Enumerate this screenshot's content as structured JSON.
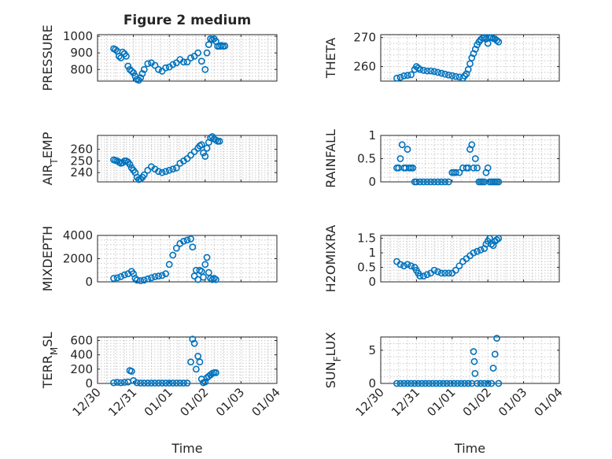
{
  "figure": {
    "title": "Figure 2 medium"
  },
  "chart_data": [
    {
      "type": "scatter",
      "panel": "PRESSURE",
      "title": "Figure 2 medium",
      "ylabel": "PRESSURE",
      "xlabel": "",
      "ylim": [
        730,
        1010
      ],
      "yticks": [
        800,
        900,
        1000
      ],
      "xlim": [
        "12/30",
        "01/04"
      ],
      "grid": true,
      "marker_color": "#0072BD",
      "x": [
        0.45,
        0.5,
        0.55,
        0.6,
        0.65,
        0.7,
        0.75,
        0.8,
        0.85,
        0.9,
        0.95,
        1.0,
        1.05,
        1.1,
        1.15,
        1.2,
        1.25,
        1.3,
        1.4,
        1.5,
        1.6,
        1.7,
        1.8,
        1.9,
        2.0,
        2.1,
        2.2,
        2.3,
        2.4,
        2.5,
        2.6,
        2.7,
        2.8,
        2.9,
        3.0,
        3.05,
        3.1,
        3.15,
        3.2,
        3.25,
        3.3,
        3.35,
        3.4,
        3.45,
        3.5,
        3.55
      ],
      "y": [
        925,
        920,
        910,
        880,
        870,
        905,
        895,
        880,
        820,
        800,
        790,
        780,
        760,
        740,
        735,
        750,
        775,
        800,
        835,
        840,
        825,
        800,
        790,
        810,
        815,
        830,
        840,
        860,
        845,
        845,
        870,
        880,
        900,
        850,
        800,
        900,
        950,
        985,
        980,
        985,
        970,
        940,
        940,
        945,
        940,
        942
      ]
    },
    {
      "type": "scatter",
      "panel": "THETA",
      "title": "",
      "ylabel": "THETA",
      "xlabel": "",
      "ylim": [
        255,
        271
      ],
      "yticks": [
        260,
        270
      ],
      "xlim": [
        "12/30",
        "01/04"
      ],
      "grid": true,
      "marker_color": "#0072BD",
      "x": [
        0.45,
        0.55,
        0.65,
        0.75,
        0.85,
        0.95,
        1.0,
        1.05,
        1.1,
        1.2,
        1.3,
        1.4,
        1.5,
        1.6,
        1.7,
        1.8,
        1.9,
        2.0,
        2.1,
        2.2,
        2.3,
        2.35,
        2.4,
        2.45,
        2.5,
        2.55,
        2.6,
        2.65,
        2.7,
        2.75,
        2.8,
        2.85,
        2.9,
        2.95,
        3.0,
        3.05,
        3.1,
        3.15,
        3.2,
        3.25,
        3.3
      ],
      "y": [
        256,
        256.3,
        256.8,
        257,
        257.2,
        259,
        260,
        259.5,
        259,
        258.7,
        258.5,
        258.5,
        258.3,
        258,
        257.7,
        257.4,
        257.1,
        256.9,
        256.6,
        256.4,
        256,
        256.8,
        257.5,
        259,
        261,
        263,
        264.5,
        266,
        267.5,
        268.5,
        269.3,
        269.8,
        270,
        269.5,
        268,
        270,
        270,
        269.7,
        269.5,
        269,
        268.5
      ]
    },
    {
      "type": "scatter",
      "panel": "AIR_TEMP",
      "title": "",
      "ylabel": "AIR_TEMP",
      "xlabel": "",
      "ylim": [
        232,
        272
      ],
      "yticks": [
        240,
        250,
        260
      ],
      "xlim": [
        "12/30",
        "01/04"
      ],
      "grid": true,
      "marker_color": "#0072BD",
      "x": [
        0.45,
        0.5,
        0.55,
        0.6,
        0.65,
        0.7,
        0.75,
        0.8,
        0.85,
        0.9,
        0.95,
        1.0,
        1.05,
        1.1,
        1.15,
        1.2,
        1.25,
        1.3,
        1.4,
        1.5,
        1.6,
        1.7,
        1.8,
        1.9,
        2.0,
        2.1,
        2.2,
        2.3,
        2.4,
        2.5,
        2.6,
        2.7,
        2.8,
        2.85,
        2.9,
        2.95,
        3.0,
        3.05,
        3.1,
        3.15,
        3.2,
        3.25,
        3.3,
        3.35,
        3.4
      ],
      "y": [
        251,
        250.5,
        250,
        249,
        248,
        248.5,
        250,
        250,
        249,
        247,
        244,
        242,
        240,
        236,
        234,
        234.5,
        236,
        238,
        242,
        245,
        243,
        241,
        240,
        241,
        242,
        243,
        244,
        248,
        250,
        252,
        255,
        258,
        261,
        263,
        264,
        257,
        254,
        261,
        266,
        270,
        271,
        269,
        268,
        267,
        267
      ]
    },
    {
      "type": "scatter",
      "panel": "RAINFALL",
      "title": "",
      "ylabel": "RAINFALL",
      "xlabel": "",
      "ylim": [
        0,
        1
      ],
      "yticks": [
        0,
        0.5,
        1
      ],
      "xlim": [
        "12/30",
        "01/04"
      ],
      "grid": true,
      "marker_color": "#0072BD",
      "x": [
        0.45,
        0.5,
        0.55,
        0.6,
        0.65,
        0.7,
        0.75,
        0.8,
        0.85,
        0.9,
        0.95,
        1.0,
        1.1,
        1.2,
        1.3,
        1.4,
        1.5,
        1.6,
        1.7,
        1.8,
        1.9,
        2.0,
        2.05,
        2.1,
        2.2,
        2.3,
        2.4,
        2.45,
        2.5,
        2.55,
        2.6,
        2.65,
        2.7,
        2.75,
        2.8,
        2.85,
        2.9,
        2.95,
        3.0,
        3.05,
        3.1,
        3.15,
        3.2,
        3.25,
        3.3
      ],
      "y": [
        0.3,
        0.3,
        0.5,
        0.8,
        0.3,
        0.3,
        0.7,
        0.3,
        0.3,
        0.3,
        0,
        0,
        0,
        0,
        0,
        0,
        0,
        0,
        0,
        0,
        0,
        0.2,
        0.2,
        0.2,
        0.2,
        0.3,
        0.3,
        0.3,
        0.7,
        0.8,
        0.3,
        0.5,
        0.3,
        0,
        0,
        0,
        0,
        0.2,
        0.3,
        0,
        0,
        0,
        0,
        0,
        0
      ]
    },
    {
      "type": "scatter",
      "panel": "MIXDEPTH",
      "title": "",
      "ylabel": "MIXDEPTH",
      "xlabel": "",
      "ylim": [
        0,
        4000
      ],
      "yticks": [
        0,
        2000,
        4000
      ],
      "xlim": [
        "12/30",
        "01/04"
      ],
      "grid": true,
      "marker_color": "#0072BD",
      "x": [
        0.45,
        0.55,
        0.65,
        0.75,
        0.85,
        0.95,
        1.0,
        1.05,
        1.1,
        1.2,
        1.3,
        1.4,
        1.5,
        1.6,
        1.7,
        1.8,
        1.9,
        2.0,
        2.1,
        2.2,
        2.3,
        2.4,
        2.5,
        2.6,
        2.65,
        2.7,
        2.75,
        2.8,
        2.85,
        2.9,
        2.95,
        3.0,
        3.05,
        3.1,
        3.15,
        3.2,
        3.25,
        3.3
      ],
      "y": [
        300,
        350,
        450,
        600,
        700,
        900,
        700,
        300,
        150,
        100,
        150,
        250,
        350,
        450,
        500,
        550,
        700,
        1500,
        2300,
        2900,
        3300,
        3500,
        3600,
        3700,
        3000,
        500,
        1000,
        200,
        1000,
        900,
        400,
        1500,
        2100,
        800,
        300,
        200,
        300,
        200
      ]
    },
    {
      "type": "scatter",
      "panel": "H2OMIXRA",
      "title": "",
      "ylabel": "H2OMIXRA",
      "xlabel": "",
      "ylim": [
        0,
        1.6
      ],
      "yticks": [
        0,
        0.5,
        1,
        1.5
      ],
      "xlim": [
        "12/30",
        "01/04"
      ],
      "grid": true,
      "marker_color": "#0072BD",
      "x": [
        0.45,
        0.55,
        0.65,
        0.75,
        0.85,
        0.95,
        1.0,
        1.05,
        1.1,
        1.2,
        1.3,
        1.4,
        1.5,
        1.6,
        1.7,
        1.8,
        1.9,
        2.0,
        2.1,
        2.2,
        2.3,
        2.4,
        2.5,
        2.6,
        2.7,
        2.8,
        2.9,
        2.95,
        3.0,
        3.05,
        3.1,
        3.15,
        3.2,
        3.25,
        3.3
      ],
      "y": [
        0.7,
        0.6,
        0.55,
        0.6,
        0.55,
        0.5,
        0.4,
        0.3,
        0.2,
        0.2,
        0.25,
        0.3,
        0.4,
        0.35,
        0.3,
        0.3,
        0.3,
        0.3,
        0.4,
        0.55,
        0.7,
        0.8,
        0.9,
        1.0,
        1.05,
        1.1,
        1.15,
        1.3,
        1.4,
        1.5,
        1.3,
        1.25,
        1.4,
        1.45,
        1.5
      ]
    },
    {
      "type": "scatter",
      "panel": "TERR_MSL",
      "title": "",
      "ylabel": "TERR_MSL",
      "xlabel": "Time",
      "ylim": [
        0,
        650
      ],
      "yticks": [
        0,
        200,
        400,
        600
      ],
      "xlim": [
        "12/30",
        "01/04"
      ],
      "xticks": [
        "12/30",
        "12/31",
        "01/01",
        "01/02",
        "01/03",
        "01/04"
      ],
      "grid": true,
      "marker_color": "#0072BD",
      "x": [
        0.45,
        0.55,
        0.65,
        0.75,
        0.85,
        0.9,
        0.95,
        1.0,
        1.1,
        1.2,
        1.3,
        1.4,
        1.5,
        1.6,
        1.7,
        1.8,
        1.9,
        2.0,
        2.1,
        2.2,
        2.3,
        2.4,
        2.5,
        2.6,
        2.65,
        2.7,
        2.75,
        2.8,
        2.85,
        2.9,
        2.95,
        3.0,
        3.05,
        3.1,
        3.15,
        3.2,
        3.25,
        3.3
      ],
      "y": [
        10,
        15,
        10,
        15,
        20,
        180,
        170,
        40,
        10,
        5,
        5,
        5,
        5,
        5,
        5,
        5,
        5,
        5,
        5,
        5,
        5,
        5,
        5,
        300,
        620,
        560,
        200,
        380,
        300,
        60,
        10,
        20,
        80,
        100,
        120,
        140,
        150,
        150
      ]
    },
    {
      "type": "scatter",
      "panel": "SUN_FLUX",
      "title": "",
      "ylabel": "SUN_FLUX",
      "xlabel": "Time",
      "ylim": [
        0,
        7
      ],
      "yticks": [
        0,
        5
      ],
      "xlim": [
        "12/30",
        "01/04"
      ],
      "xticks": [
        "12/30",
        "12/31",
        "01/01",
        "01/02",
        "01/03",
        "01/04"
      ],
      "grid": true,
      "marker_color": "#0072BD",
      "x": [
        0.45,
        0.55,
        0.65,
        0.75,
        0.85,
        0.95,
        1.05,
        1.15,
        1.25,
        1.35,
        1.45,
        1.55,
        1.65,
        1.75,
        1.85,
        1.95,
        2.05,
        2.15,
        2.25,
        2.35,
        2.45,
        2.55,
        2.6,
        2.62,
        2.64,
        2.7,
        2.8,
        2.9,
        3.0,
        3.1,
        3.15,
        3.2,
        3.25,
        3.3
      ],
      "y": [
        0,
        0,
        0,
        0,
        0,
        0,
        0,
        0,
        0,
        0,
        0,
        0,
        0,
        0,
        0,
        0,
        0,
        0,
        0,
        0,
        0,
        0,
        4.8,
        3.3,
        1.5,
        0,
        0,
        0,
        0,
        0,
        2.3,
        4.4,
        6.8,
        0
      ]
    }
  ]
}
